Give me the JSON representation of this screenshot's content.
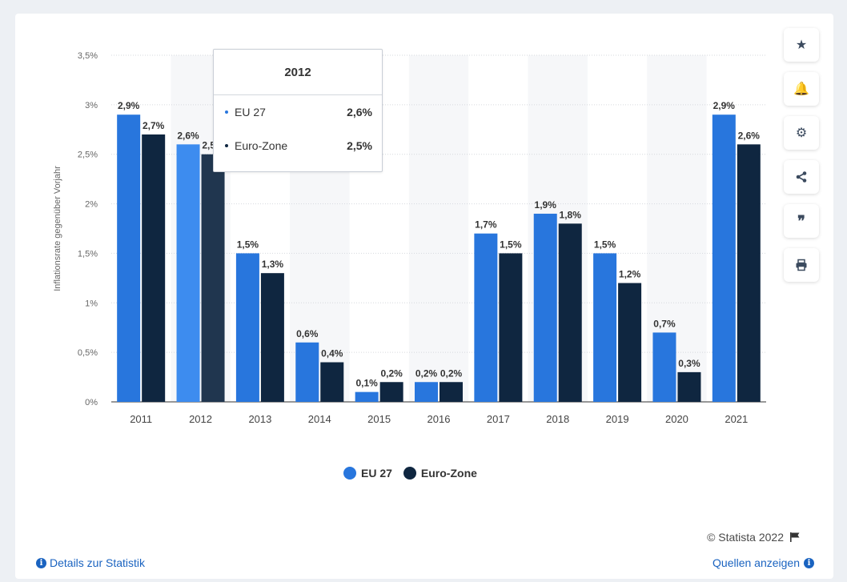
{
  "chart_data": {
    "type": "bar",
    "categories": [
      "2011",
      "2012",
      "2013",
      "2014",
      "2015",
      "2016",
      "2017",
      "2018",
      "2019",
      "2020",
      "2021"
    ],
    "series": [
      {
        "name": "EU 27",
        "color": "#2876dd",
        "highlight_color": "#3d8cef",
        "values": [
          2.9,
          2.6,
          1.5,
          0.6,
          0.1,
          0.2,
          1.7,
          1.9,
          1.5,
          0.7,
          2.9
        ],
        "labels": [
          "2,9%",
          "2,6%",
          "1,5%",
          "0,6%",
          "0,1%",
          "0,2%",
          "1,7%",
          "1,9%",
          "1,5%",
          "0,7%",
          "2,9%"
        ]
      },
      {
        "name": "Euro-Zone",
        "color": "#0f2640",
        "highlight_color": "#20364f",
        "values": [
          2.7,
          2.5,
          1.3,
          0.4,
          0.2,
          0.2,
          1.5,
          1.8,
          1.2,
          0.3,
          2.6
        ],
        "labels": [
          "2,7%",
          "2,5%",
          "1,3%",
          "0,4%",
          "0,2%",
          "0,2%",
          "1,5%",
          "1,8%",
          "1,2%",
          "0,3%",
          "2,6%"
        ]
      }
    ],
    "ylabel": "Inflationsrate gegenüber Vorjahr",
    "ylim": [
      0,
      3.5
    ],
    "yticks": [
      0,
      0.5,
      1,
      1.5,
      2,
      2.5,
      3,
      3.5
    ],
    "ytick_labels": [
      "0%",
      "0,5%",
      "1%",
      "1,5%",
      "2%",
      "2,5%",
      "3%",
      "3,5%"
    ],
    "grid": true,
    "highlighted_category": "2012",
    "legend_position": "bottom-center"
  },
  "tooltip": {
    "title": "2012",
    "rows": [
      {
        "name": "EU 27",
        "value": "2,6%",
        "color": "#2876dd"
      },
      {
        "name": "Euro-Zone",
        "value": "2,5%",
        "color": "#0f2640"
      }
    ]
  },
  "legend": {
    "items": [
      {
        "label": "EU 27",
        "color": "#2876dd"
      },
      {
        "label": "Euro-Zone",
        "color": "#0f2640"
      }
    ]
  },
  "sidebar": {
    "buttons": [
      {
        "name": "star-icon",
        "glyph": "★"
      },
      {
        "name": "bell-icon",
        "glyph": "🔔"
      },
      {
        "name": "gear-icon",
        "glyph": "⚙"
      },
      {
        "name": "share-icon",
        "glyph": "⋖"
      },
      {
        "name": "quote-icon",
        "glyph": "❞"
      },
      {
        "name": "print-icon",
        "glyph": "⎙"
      }
    ]
  },
  "footer": {
    "copyright": "© Statista 2022",
    "details_link": "Details zur Statistik",
    "sources_link": "Quellen anzeigen"
  }
}
